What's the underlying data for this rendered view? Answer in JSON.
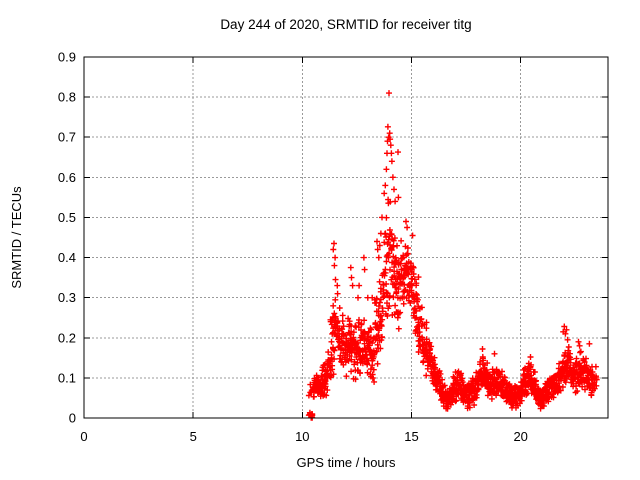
{
  "chart_data": {
    "type": "scatter",
    "title": "Day 244 of 2020, SRMTID for receiver titg",
    "xlabel": "GPS time / hours",
    "ylabel": "SRMTID / TECUs",
    "xlim": [
      0,
      24
    ],
    "ylim": [
      0,
      0.9
    ],
    "xticks": [
      0,
      5,
      10,
      15,
      20
    ],
    "xtick_labels": [
      "0",
      "5",
      "10",
      "15",
      "20"
    ],
    "yticks": [
      0,
      0.1,
      0.2,
      0.3,
      0.4,
      0.5,
      0.6,
      0.7,
      0.8,
      0.9
    ],
    "ytick_labels": [
      "0",
      "0.1",
      "0.2",
      "0.3",
      "0.4",
      "0.5",
      "0.6",
      "0.7",
      "0.8",
      "0.9"
    ],
    "grid": true,
    "legend": "none",
    "marker": "plus",
    "marker_color": "#ff0000",
    "grid_color": "#9a9a9a",
    "border_color": "#000000",
    "data_extent_note": "data present only from ~10.3h to ~23.5h; peak 0.81 TECUs at ~14.0h",
    "zero_cluster": {
      "x0": 10.3,
      "x1": 10.48,
      "y0": 0.0,
      "y1": 0.015,
      "n": 12
    },
    "bands": [
      [
        10.3,
        10.5,
        0.05,
        0.1,
        6
      ],
      [
        10.5,
        10.7,
        0.04,
        0.11,
        22
      ],
      [
        10.7,
        10.9,
        0.04,
        0.12,
        24
      ],
      [
        10.9,
        11.1,
        0.05,
        0.14,
        24
      ],
      [
        11.1,
        11.3,
        0.06,
        0.17,
        24
      ],
      [
        11.3,
        11.5,
        0.1,
        0.3,
        24
      ],
      [
        11.5,
        11.7,
        0.12,
        0.33,
        24
      ],
      [
        11.7,
        11.9,
        0.1,
        0.26,
        24
      ],
      [
        11.9,
        12.1,
        0.1,
        0.24,
        24
      ],
      [
        12.1,
        12.3,
        0.1,
        0.28,
        24
      ],
      [
        12.3,
        12.5,
        0.08,
        0.25,
        24
      ],
      [
        12.5,
        12.7,
        0.08,
        0.26,
        24
      ],
      [
        12.7,
        12.9,
        0.1,
        0.27,
        24
      ],
      [
        12.9,
        13.1,
        0.08,
        0.24,
        24
      ],
      [
        13.1,
        13.3,
        0.06,
        0.23,
        24
      ],
      [
        13.3,
        13.5,
        0.1,
        0.32,
        24
      ],
      [
        13.5,
        13.7,
        0.14,
        0.38,
        24
      ],
      [
        13.7,
        13.9,
        0.2,
        0.52,
        24
      ],
      [
        13.9,
        14.1,
        0.26,
        0.62,
        24
      ],
      [
        14.1,
        14.3,
        0.22,
        0.52,
        24
      ],
      [
        14.3,
        14.5,
        0.2,
        0.46,
        24
      ],
      [
        14.5,
        14.7,
        0.24,
        0.47,
        24
      ],
      [
        14.7,
        14.9,
        0.27,
        0.47,
        24
      ],
      [
        14.9,
        15.1,
        0.24,
        0.44,
        24
      ],
      [
        15.1,
        15.3,
        0.19,
        0.37,
        24
      ],
      [
        15.3,
        15.5,
        0.15,
        0.3,
        24
      ],
      [
        15.5,
        15.7,
        0.12,
        0.24,
        24
      ],
      [
        15.7,
        15.9,
        0.1,
        0.2,
        24
      ],
      [
        15.9,
        16.1,
        0.08,
        0.16,
        24
      ],
      [
        16.1,
        16.3,
        0.05,
        0.13,
        24
      ],
      [
        16.3,
        16.5,
        0.03,
        0.1,
        24
      ],
      [
        16.5,
        16.7,
        0.02,
        0.08,
        24
      ],
      [
        16.7,
        16.9,
        0.02,
        0.09,
        24
      ],
      [
        16.9,
        17.1,
        0.03,
        0.12,
        24
      ],
      [
        17.1,
        17.3,
        0.04,
        0.13,
        24
      ],
      [
        17.3,
        17.5,
        0.03,
        0.11,
        24
      ],
      [
        17.5,
        17.7,
        0.02,
        0.09,
        24
      ],
      [
        17.7,
        17.9,
        0.03,
        0.1,
        24
      ],
      [
        17.9,
        18.1,
        0.04,
        0.12,
        24
      ],
      [
        18.1,
        18.3,
        0.05,
        0.16,
        24
      ],
      [
        18.3,
        18.5,
        0.05,
        0.15,
        24
      ],
      [
        18.5,
        18.7,
        0.04,
        0.12,
        24
      ],
      [
        18.7,
        18.9,
        0.05,
        0.14,
        24
      ],
      [
        18.9,
        19.1,
        0.05,
        0.13,
        24
      ],
      [
        19.1,
        19.3,
        0.04,
        0.12,
        24
      ],
      [
        19.3,
        19.5,
        0.03,
        0.1,
        24
      ],
      [
        19.5,
        19.7,
        0.02,
        0.08,
        24
      ],
      [
        19.7,
        19.9,
        0.02,
        0.09,
        24
      ],
      [
        19.9,
        20.1,
        0.03,
        0.1,
        24
      ],
      [
        20.1,
        20.3,
        0.04,
        0.13,
        24
      ],
      [
        20.3,
        20.5,
        0.05,
        0.15,
        24
      ],
      [
        20.5,
        20.7,
        0.04,
        0.12,
        24
      ],
      [
        20.7,
        20.9,
        0.03,
        0.09,
        24
      ],
      [
        20.9,
        21.1,
        0.02,
        0.08,
        24
      ],
      [
        21.1,
        21.3,
        0.03,
        0.1,
        24
      ],
      [
        21.3,
        21.5,
        0.04,
        0.11,
        24
      ],
      [
        21.5,
        21.7,
        0.05,
        0.12,
        24
      ],
      [
        21.7,
        21.9,
        0.06,
        0.14,
        24
      ],
      [
        21.9,
        22.1,
        0.07,
        0.18,
        24
      ],
      [
        22.1,
        22.3,
        0.08,
        0.18,
        24
      ],
      [
        22.3,
        22.5,
        0.06,
        0.15,
        24
      ],
      [
        22.5,
        22.7,
        0.06,
        0.16,
        24
      ],
      [
        22.7,
        22.9,
        0.07,
        0.17,
        24
      ],
      [
        22.9,
        23.1,
        0.06,
        0.15,
        24
      ],
      [
        23.1,
        23.3,
        0.05,
        0.14,
        24
      ],
      [
        23.3,
        23.5,
        0.06,
        0.13,
        12
      ]
    ],
    "outliers": [
      [
        11.42,
        0.42
      ],
      [
        11.45,
        0.435
      ],
      [
        11.47,
        0.38
      ],
      [
        11.5,
        0.4
      ],
      [
        11.52,
        0.345
      ],
      [
        11.6,
        0.33
      ],
      [
        12.22,
        0.375
      ],
      [
        12.25,
        0.35
      ],
      [
        12.3,
        0.33
      ],
      [
        12.55,
        0.3
      ],
      [
        12.6,
        0.33
      ],
      [
        12.82,
        0.4
      ],
      [
        12.85,
        0.37
      ],
      [
        13.0,
        0.3
      ],
      [
        13.2,
        0.3
      ],
      [
        13.42,
        0.44
      ],
      [
        13.45,
        0.42
      ],
      [
        13.5,
        0.4
      ],
      [
        13.55,
        0.43
      ],
      [
        13.6,
        0.46
      ],
      [
        13.65,
        0.5
      ],
      [
        13.75,
        0.56
      ],
      [
        13.8,
        0.58
      ],
      [
        13.85,
        0.62
      ],
      [
        13.88,
        0.66
      ],
      [
        13.9,
        0.69
      ],
      [
        13.92,
        0.726
      ],
      [
        13.95,
        0.7
      ],
      [
        13.97,
        0.81
      ],
      [
        14.0,
        0.71
      ],
      [
        14.02,
        0.695
      ],
      [
        14.05,
        0.68
      ],
      [
        14.08,
        0.66
      ],
      [
        14.1,
        0.64
      ],
      [
        14.15,
        0.6
      ],
      [
        14.2,
        0.57
      ],
      [
        14.25,
        0.54
      ],
      [
        14.38,
        0.663
      ],
      [
        14.4,
        0.55
      ],
      [
        14.75,
        0.49
      ],
      [
        14.8,
        0.475
      ],
      [
        15.05,
        0.455
      ],
      [
        18.25,
        0.172
      ],
      [
        18.8,
        0.16
      ],
      [
        20.45,
        0.152
      ],
      [
        21.95,
        0.215
      ],
      [
        22.0,
        0.228
      ],
      [
        22.05,
        0.21
      ],
      [
        22.1,
        0.22
      ],
      [
        22.15,
        0.195
      ],
      [
        22.65,
        0.19
      ],
      [
        22.7,
        0.18
      ],
      [
        23.15,
        0.185
      ]
    ]
  }
}
